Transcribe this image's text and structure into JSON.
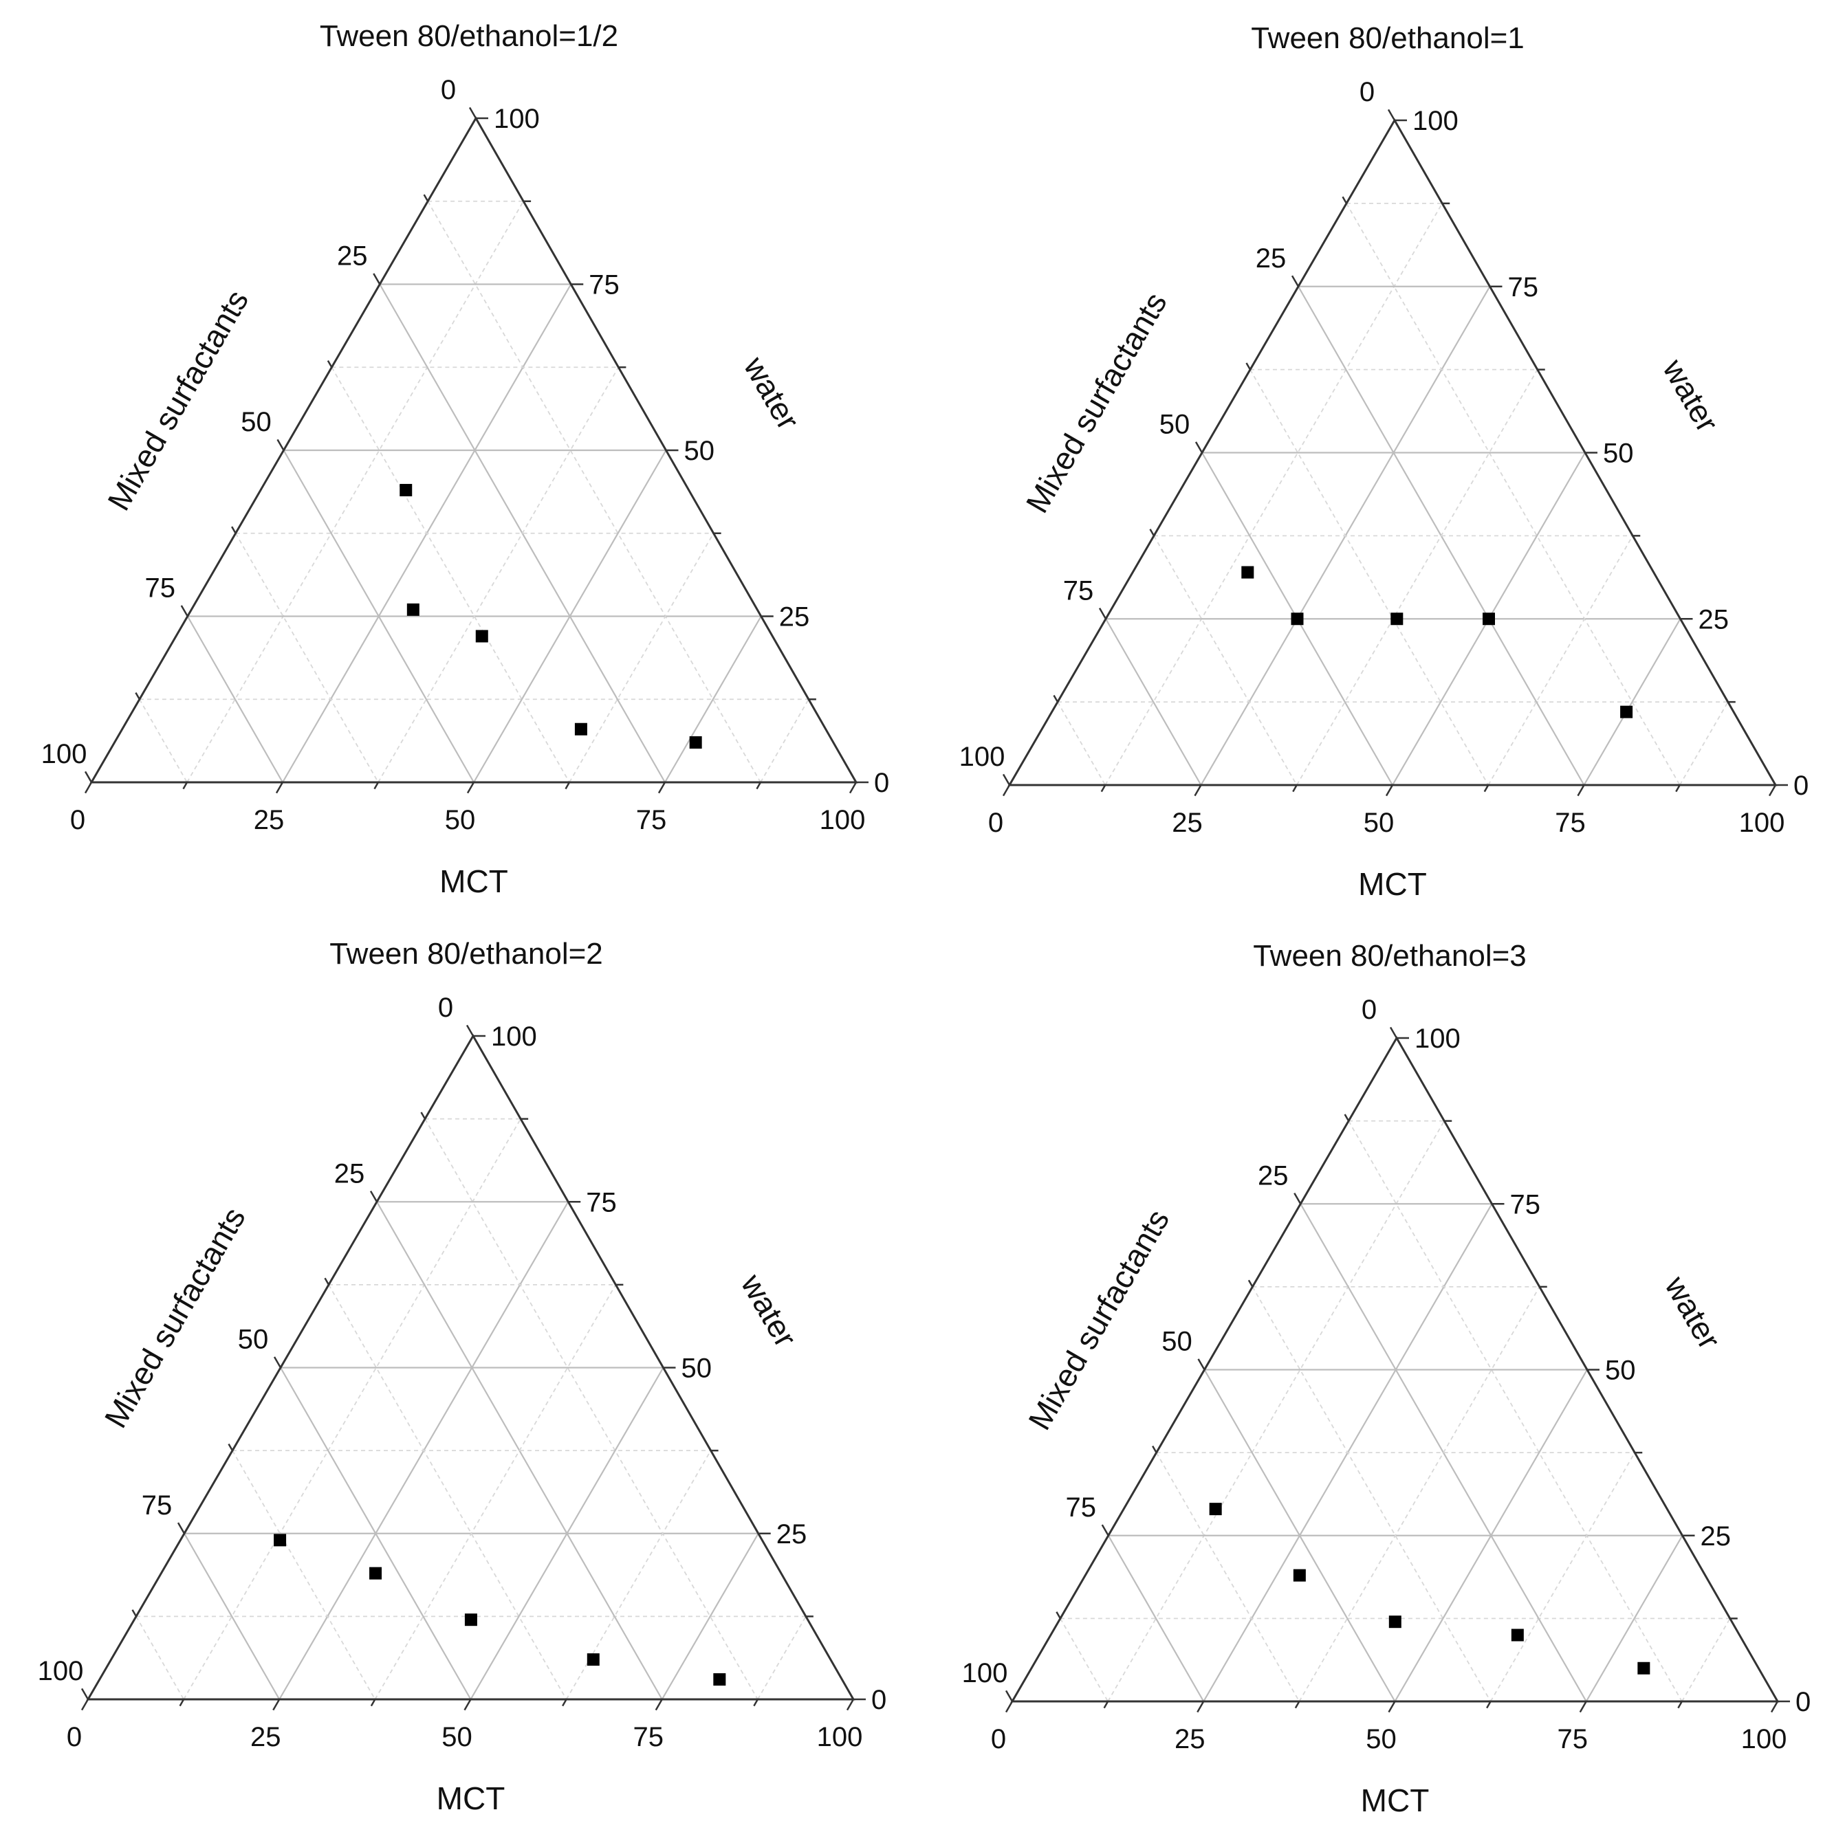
{
  "chart_data": [
    {
      "type": "scatter",
      "subtype": "ternary",
      "title": "Tween 80/ethanol=1/2",
      "axes": {
        "bottom": {
          "label": "MCT",
          "range": [
            0,
            100
          ],
          "ticks": [
            "0",
            "25",
            "50",
            "75",
            "100"
          ]
        },
        "left": {
          "label": "Mixed surfactants",
          "range": [
            100,
            0
          ],
          "ticks": [
            "0",
            "25",
            "50",
            "75",
            "100"
          ]
        },
        "right": {
          "label": "water",
          "range": [
            0,
            100
          ],
          "ticks": [
            "0",
            "25",
            "50",
            "75",
            "100"
          ]
        }
      },
      "grid": true,
      "points": [
        {
          "MCT": 19,
          "mixed_surfactants": 37,
          "water": 44
        },
        {
          "MCT": 29,
          "mixed_surfactants": 45,
          "water": 26
        },
        {
          "MCT": 40,
          "mixed_surfactants": 38,
          "water": 22
        },
        {
          "MCT": 60,
          "mixed_surfactants": 32,
          "water": 8
        },
        {
          "MCT": 76,
          "mixed_surfactants": 18,
          "water": 6
        }
      ]
    },
    {
      "type": "scatter",
      "subtype": "ternary",
      "title": "Tween 80/ethanol=1",
      "axes": {
        "bottom": {
          "label": "MCT",
          "range": [
            0,
            100
          ],
          "ticks": [
            "0",
            "25",
            "50",
            "75",
            "100"
          ]
        },
        "left": {
          "label": "Mixed surfactants",
          "range": [
            100,
            0
          ],
          "ticks": [
            "0",
            "25",
            "50",
            "75",
            "100"
          ]
        },
        "right": {
          "label": "water",
          "range": [
            0,
            100
          ],
          "ticks": [
            "0",
            "25",
            "50",
            "75",
            "100"
          ]
        }
      },
      "grid": true,
      "points": [
        {
          "MCT": 15,
          "mixed_surfactants": 53,
          "water": 32
        },
        {
          "MCT": 38,
          "mixed_surfactants": 37,
          "water": 25
        },
        {
          "MCT": 25,
          "mixed_surfactants": 50,
          "water": 25
        },
        {
          "MCT": 50,
          "mixed_surfactants": 25,
          "water": 25
        },
        {
          "MCT": 75,
          "mixed_surfactants": 14,
          "water": 11
        }
      ]
    },
    {
      "type": "scatter",
      "subtype": "ternary",
      "title": "Tween 80/ethanol=2",
      "axes": {
        "bottom": {
          "label": "MCT",
          "range": [
            0,
            100
          ],
          "ticks": [
            "0",
            "25",
            "50",
            "75",
            "100"
          ]
        },
        "left": {
          "label": "Mixed surfactants",
          "range": [
            100,
            0
          ],
          "ticks": [
            "0",
            "25",
            "50",
            "75",
            "100"
          ]
        },
        "right": {
          "label": "water",
          "range": [
            0,
            100
          ],
          "ticks": [
            "0",
            "25",
            "50",
            "75",
            "100"
          ]
        }
      },
      "grid": true,
      "points": [
        {
          "MCT": 13,
          "mixed_surfactants": 63,
          "water": 24
        },
        {
          "MCT": 28,
          "mixed_surfactants": 53,
          "water": 19
        },
        {
          "MCT": 44,
          "mixed_surfactants": 44,
          "water": 12
        },
        {
          "MCT": 63,
          "mixed_surfactants": 31,
          "water": 6
        },
        {
          "MCT": 81,
          "mixed_surfactants": 16,
          "water": 3
        }
      ]
    },
    {
      "type": "scatter",
      "subtype": "ternary",
      "title": "Tween 80/ethanol=3",
      "axes": {
        "bottom": {
          "label": "MCT",
          "range": [
            0,
            100
          ],
          "ticks": [
            "0",
            "25",
            "50",
            "75",
            "100"
          ]
        },
        "left": {
          "label": "Mixed surfactants",
          "range": [
            100,
            0
          ],
          "ticks": [
            "0",
            "25",
            "50",
            "75",
            "100"
          ]
        },
        "right": {
          "label": "water",
          "range": [
            0,
            100
          ],
          "ticks": [
            "0",
            "25",
            "50",
            "75",
            "100"
          ]
        }
      },
      "grid": true,
      "points": [
        {
          "MCT": 12,
          "mixed_surfactants": 59,
          "water": 29
        },
        {
          "MCT": 28,
          "mixed_surfactants": 53,
          "water": 19
        },
        {
          "MCT": 44,
          "mixed_surfactants": 44,
          "water": 12
        },
        {
          "MCT": 61,
          "mixed_surfactants": 29,
          "water": 10
        },
        {
          "MCT": 80,
          "mixed_surfactants": 15,
          "water": 5
        }
      ]
    }
  ]
}
